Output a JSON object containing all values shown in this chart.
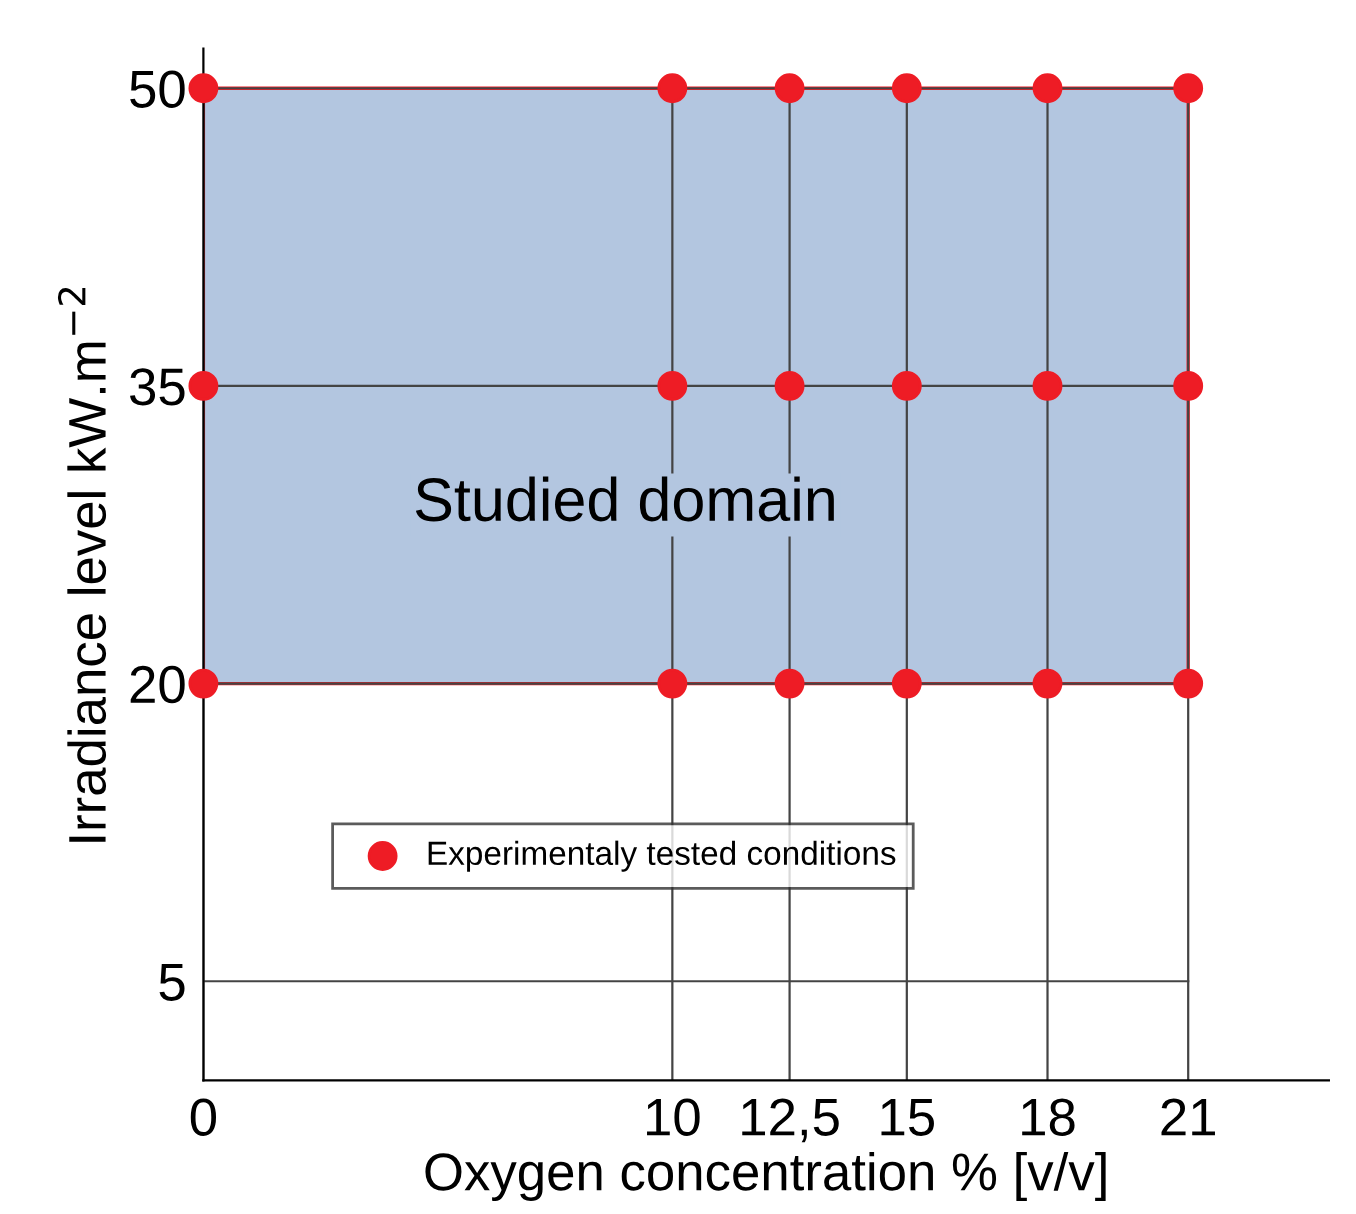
{
  "chart_data": {
    "type": "scatter",
    "xlabel": "Oxygen concentration % [v/v]",
    "ylabel": "Irradiance level kW.m$^{−2}$",
    "series": [
      {
        "name": "Experimentaly tested conditions",
        "color": "#ee1c25",
        "x": [
          0,
          10,
          12.5,
          15,
          18,
          21,
          0,
          10,
          12.5,
          15,
          18,
          21,
          0,
          10,
          12.5,
          15,
          18,
          21
        ],
        "values": [
          50,
          50,
          50,
          50,
          50,
          50,
          35,
          35,
          35,
          35,
          35,
          35,
          20,
          20,
          20,
          20,
          20,
          20
        ]
      }
    ],
    "bands": [
      {
        "axis": "y",
        "from": 20,
        "to": 50,
        "label": "Studied domain",
        "color": "#b3c6e0"
      }
    ],
    "xlim": [
      0,
      24
    ],
    "ylim": [
      0,
      52
    ],
    "xticks": [
      0,
      10,
      {
        "value": 12.5,
        "label": "12,5"
      },
      15,
      18,
      21
    ],
    "yticks": [
      5,
      20,
      35,
      50
    ],
    "grid": true,
    "legend": "lower left",
    "marker": "circle"
  }
}
